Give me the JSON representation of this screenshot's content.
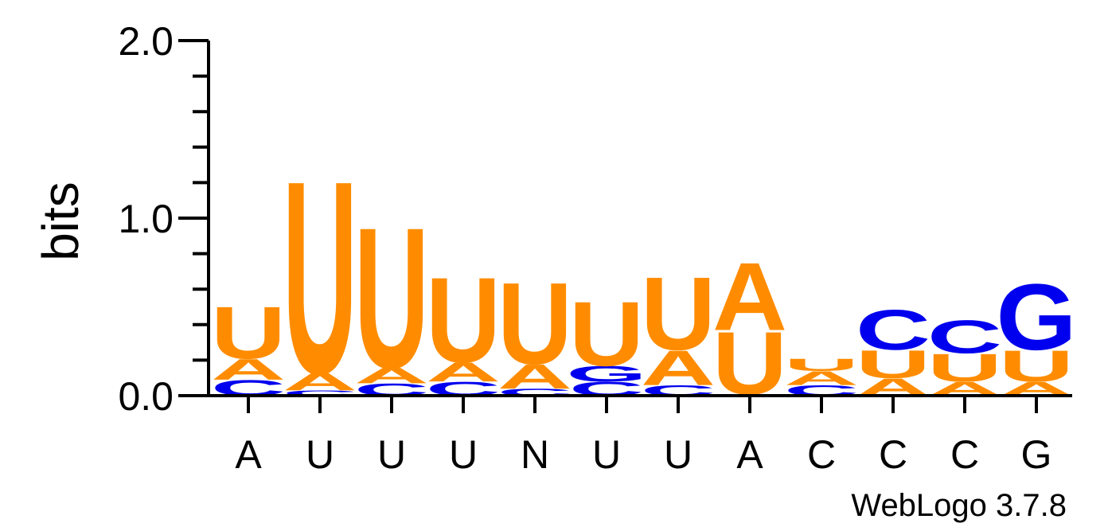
{
  "chart_data": {
    "type": "sequence-logo",
    "ylabel": "bits",
    "ylim": [
      0,
      2
    ],
    "yticks": [
      "0.0",
      "1.0",
      "2.0"
    ],
    "minor_ticks_per_unit": 5,
    "categories": [
      "A",
      "U",
      "U",
      "U",
      "N",
      "U",
      "U",
      "A",
      "C",
      "C",
      "C",
      "G"
    ],
    "colors": {
      "A": "#ff8c00",
      "U": "#ff8c00",
      "C": "#0000ee",
      "G": "#0000ee"
    },
    "stacks": [
      [
        {
          "letter": "C",
          "height": 0.09
        },
        {
          "letter": "A",
          "height": 0.12
        },
        {
          "letter": "U",
          "height": 0.3
        }
      ],
      [
        {
          "letter": "C",
          "height": 0.03
        },
        {
          "letter": "A",
          "height": 0.1
        },
        {
          "letter": "U",
          "height": 1.11
        }
      ],
      [
        {
          "letter": "C",
          "height": 0.07
        },
        {
          "letter": "A",
          "height": 0.09
        },
        {
          "letter": "U",
          "height": 0.81
        }
      ],
      [
        {
          "letter": "C",
          "height": 0.08
        },
        {
          "letter": "A",
          "height": 0.11
        },
        {
          "letter": "U",
          "height": 0.49
        }
      ],
      [
        {
          "letter": "C",
          "height": 0.04
        },
        {
          "letter": "A",
          "height": 0.14
        },
        {
          "letter": "U",
          "height": 0.47
        }
      ],
      [
        {
          "letter": "C",
          "height": 0.08
        },
        {
          "letter": "G",
          "height": 0.09
        },
        {
          "letter": "U",
          "height": 0.37
        }
      ],
      [
        {
          "letter": "C",
          "height": 0.06
        },
        {
          "letter": "A",
          "height": 0.2
        },
        {
          "letter": "U",
          "height": 0.42
        }
      ],
      [
        {
          "letter": "C",
          "height": 0.01
        },
        {
          "letter": "U",
          "height": 0.36
        },
        {
          "letter": "A",
          "height": 0.39
        }
      ],
      [
        {
          "letter": "C",
          "height": 0.06
        },
        {
          "letter": "A",
          "height": 0.08
        },
        {
          "letter": "U",
          "height": 0.07
        }
      ],
      [
        {
          "letter": "A",
          "height": 0.1
        },
        {
          "letter": "U",
          "height": 0.16
        },
        {
          "letter": "C",
          "height": 0.23
        }
      ],
      [
        {
          "letter": "A",
          "height": 0.08
        },
        {
          "letter": "U",
          "height": 0.16
        },
        {
          "letter": "C",
          "height": 0.19
        }
      ],
      [
        {
          "letter": "A",
          "height": 0.08
        },
        {
          "letter": "U",
          "height": 0.18
        },
        {
          "letter": "G",
          "height": 0.38
        }
      ]
    ]
  },
  "credit": "WebLogo 3.7.8"
}
